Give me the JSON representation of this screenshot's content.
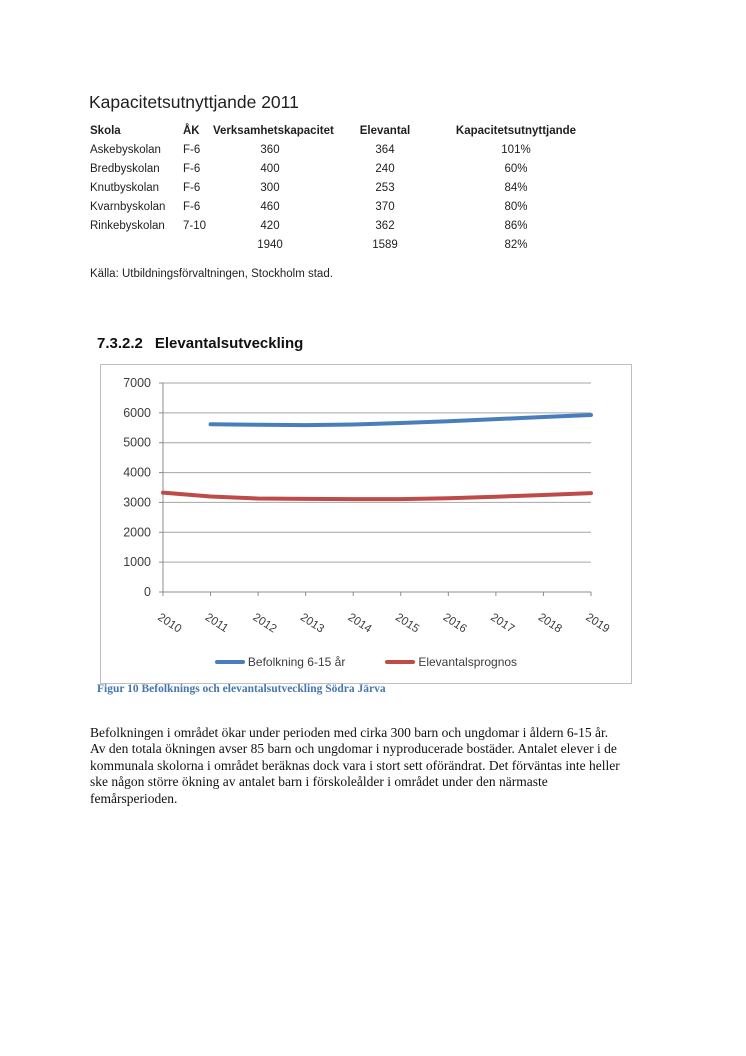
{
  "title": "Kapacitetsutnyttjande 2011",
  "table": {
    "headers": [
      "Skola",
      "ÅK",
      "Verksamhetskapacitet",
      "Elevantal",
      "Kapacitetsutnyttjande"
    ],
    "rows": [
      [
        "Askebyskolan",
        "F-6",
        "360",
        "364",
        "101%"
      ],
      [
        "Bredbyskolan",
        "F-6",
        "400",
        "240",
        "60%"
      ],
      [
        "Knutbyskolan",
        "F-6",
        "300",
        "253",
        "84%"
      ],
      [
        "Kvarnbyskolan",
        "F-6",
        "460",
        "370",
        "80%"
      ],
      [
        "Rinkebyskolan",
        "7-10",
        "420",
        "362",
        "86%"
      ],
      [
        "",
        "",
        "1940",
        "1589",
        "82%"
      ]
    ]
  },
  "source": "Källa: Utbildningsförvaltningen, Stockholm stad.",
  "section": {
    "number": "7.3.2.2",
    "title": "Elevantalsutveckling"
  },
  "chart_data": {
    "type": "line",
    "categories": [
      "2010",
      "2011",
      "2012",
      "2013",
      "2014",
      "2015",
      "2016",
      "2017",
      "2018",
      "2019"
    ],
    "series": [
      {
        "name": "Befolkning 6-15 år",
        "color": "#4a7ebb",
        "values": [
          null,
          5620,
          5600,
          5590,
          5610,
          5660,
          5720,
          5790,
          5860,
          5930
        ]
      },
      {
        "name": "Elevantalsprognos",
        "color": "#be4b48",
        "values": [
          3330,
          3200,
          3130,
          3120,
          3110,
          3110,
          3140,
          3190,
          3250,
          3310
        ]
      }
    ],
    "title": "",
    "xlabel": "",
    "ylabel": "",
    "ylim": [
      0,
      7000
    ],
    "ytick_step": 1000,
    "grid": true,
    "grid_color": "#a6a6a6",
    "axis_color": "#8c8c8c",
    "legend_position": "bottom",
    "x_label_rotation": 33
  },
  "figure_caption": "Figur 10 Befolknings och elevantalsutveckling Södra Järva",
  "paragraph": "Befolkningen i området ökar under perioden med cirka 300 barn och ungdomar i åldern 6-15 år.\nAv den totala ökningen avser 85 barn och ungdomar i nyproducerade bostäder. Antalet elever i de\nkommunala skolorna i området beräknas dock vara i stort sett oförändrat. Det förväntas inte heller\nske någon större ökning av antalet barn i förskoleålder i området under den närmaste\nfemårsperioden.",
  "colors": {
    "caption_blue": "#4576ad",
    "chart_border": "#bfbfbf"
  }
}
